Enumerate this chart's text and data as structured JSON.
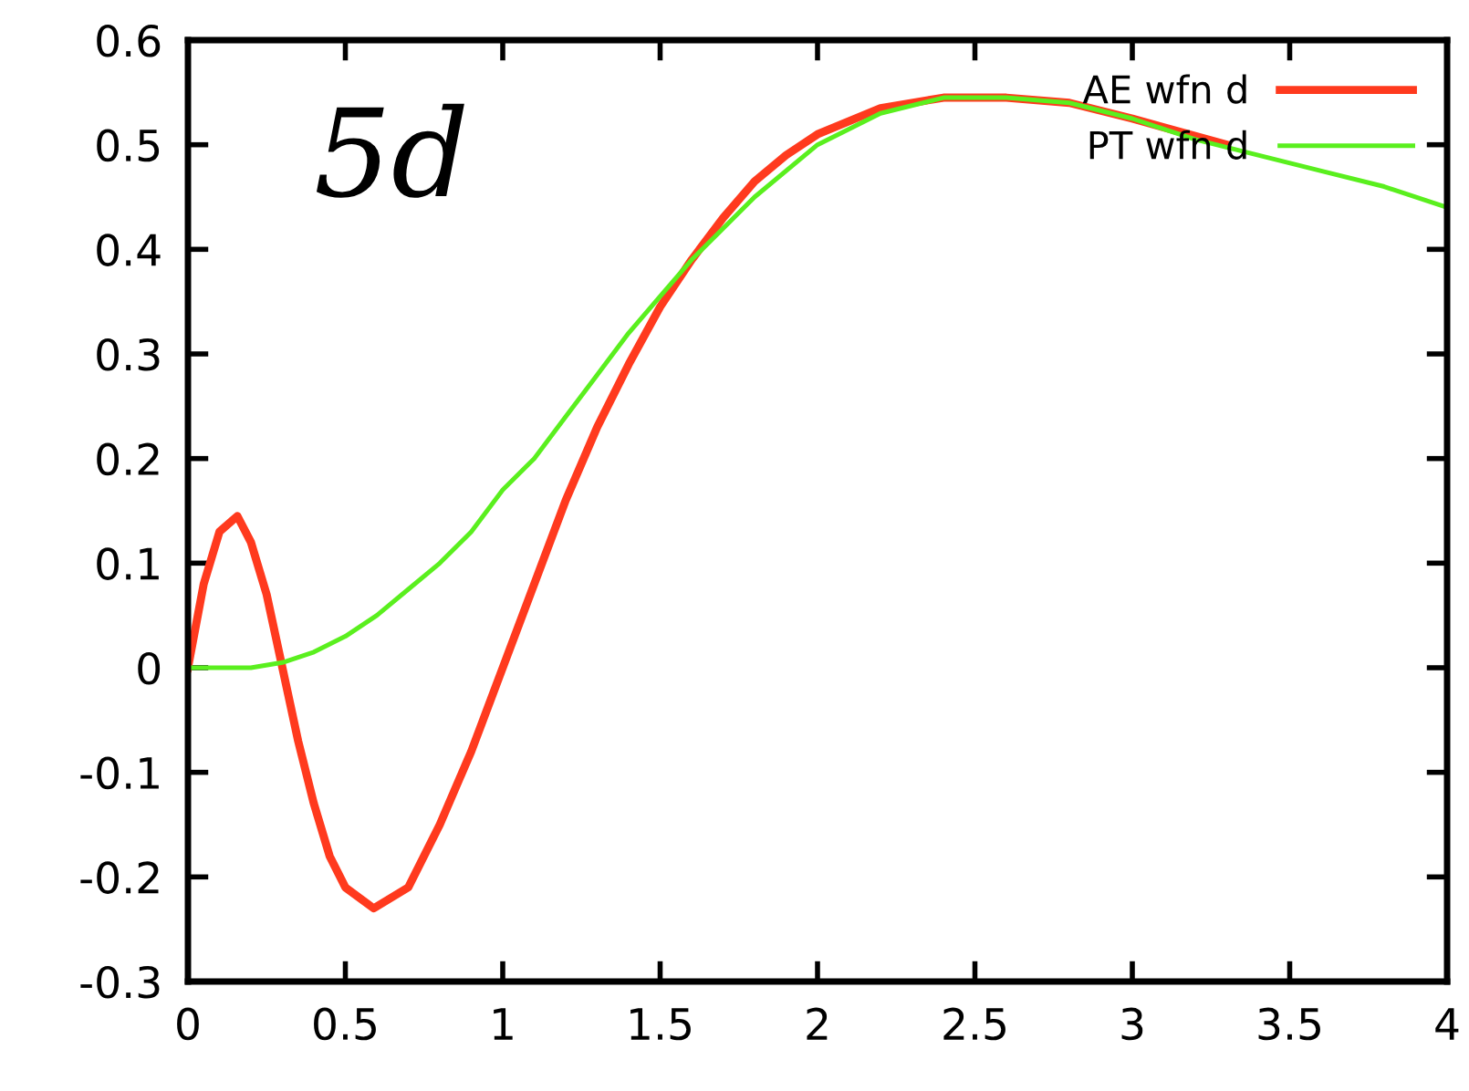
{
  "chart_data": {
    "type": "line",
    "annotations": [
      "5d"
    ],
    "legend": "top right",
    "grid": false,
    "xlim": [
      0,
      4
    ],
    "ylim": [
      -0.3,
      0.6
    ],
    "xticks": [
      0,
      0.5,
      1,
      1.5,
      2,
      2.5,
      3,
      3.5,
      4
    ],
    "yticks": [
      -0.3,
      -0.2,
      -0.1,
      0,
      0.1,
      0.2,
      0.3,
      0.4,
      0.5,
      0.6
    ],
    "series": [
      {
        "name": "AE wfn d",
        "color": "#ff3a1e",
        "x": [
          0,
          0.05,
          0.1,
          0.157,
          0.2,
          0.25,
          0.3,
          0.35,
          0.4,
          0.45,
          0.5,
          0.59,
          0.7,
          0.8,
          0.9,
          1.0,
          1.1,
          1.2,
          1.3,
          1.4,
          1.5,
          1.6,
          1.7,
          1.8,
          1.9,
          2.0,
          2.2,
          2.4,
          2.6,
          2.8,
          3.0,
          3.3
        ],
        "values": [
          0,
          0.08,
          0.13,
          0.145,
          0.12,
          0.07,
          0.0,
          -0.07,
          -0.13,
          -0.18,
          -0.21,
          -0.23,
          -0.21,
          -0.15,
          -0.08,
          0.0,
          0.08,
          0.16,
          0.23,
          0.29,
          0.345,
          0.39,
          0.43,
          0.465,
          0.49,
          0.51,
          0.535,
          0.545,
          0.545,
          0.54,
          0.525,
          0.5
        ]
      },
      {
        "name": "PT wfn d",
        "color": "#5aef1e",
        "x": [
          0,
          0.2,
          0.3,
          0.4,
          0.5,
          0.6,
          0.7,
          0.8,
          0.9,
          1.0,
          1.1,
          1.2,
          1.3,
          1.4,
          1.5,
          1.6,
          1.8,
          2.0,
          2.2,
          2.4,
          2.6,
          2.8,
          3.0,
          3.2,
          3.4,
          3.6,
          3.8,
          4.0
        ],
        "values": [
          0,
          0,
          0.005,
          0.015,
          0.03,
          0.05,
          0.075,
          0.1,
          0.13,
          0.17,
          0.2,
          0.24,
          0.28,
          0.32,
          0.355,
          0.39,
          0.45,
          0.5,
          0.53,
          0.545,
          0.545,
          0.54,
          0.525,
          0.505,
          0.49,
          0.475,
          0.46,
          0.44
        ]
      }
    ]
  }
}
